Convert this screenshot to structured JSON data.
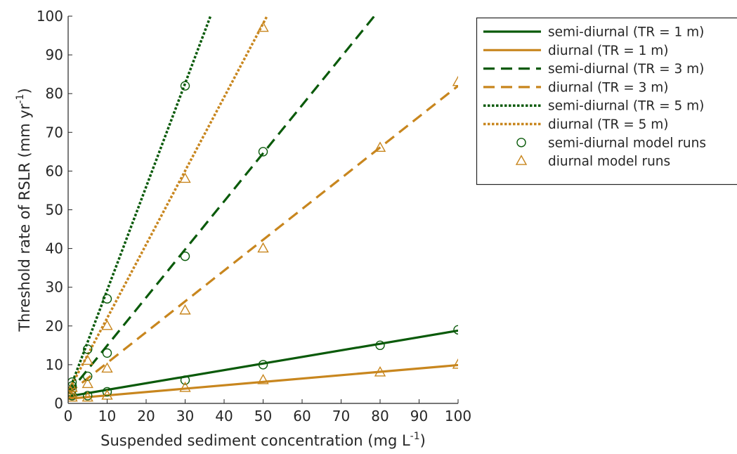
{
  "chart_data": {
    "type": "line",
    "xlabel": "Suspended sediment concentration (mg L",
    "xlabel_sup": "-1",
    "xlabel_tail": ")",
    "ylabel": "Threshold rate of RSLR (mm yr",
    "ylabel_sup": "-1",
    "ylabel_tail": ")",
    "xlim": [
      0,
      100
    ],
    "ylim": [
      0,
      100
    ],
    "xticks": [
      0,
      10,
      20,
      30,
      40,
      50,
      60,
      70,
      80,
      90,
      100
    ],
    "yticks": [
      0,
      10,
      20,
      30,
      40,
      50,
      60,
      70,
      80,
      90,
      100
    ],
    "grid": false,
    "legend_position": "outside-top-right",
    "colors": {
      "semi_diurnal": "#0a5a0a",
      "diurnal": "#c8861e"
    },
    "series": [
      {
        "name": "semi-diurnal (TR = 1 m)",
        "kind": "line",
        "color": "#0a5a0a",
        "dash": "solid",
        "x": [
          0,
          100
        ],
        "y": [
          1.8,
          18.8
        ]
      },
      {
        "name": "diurnal (TR = 1 m)",
        "kind": "line",
        "color": "#c8861e",
        "dash": "solid",
        "x": [
          0,
          100
        ],
        "y": [
          1.2,
          9.9
        ]
      },
      {
        "name": "semi-diurnal (TR = 3 m)",
        "kind": "line",
        "color": "#0a5a0a",
        "dash": "dashed",
        "x": [
          0,
          78.5
        ],
        "y": [
          2.5,
          100
        ]
      },
      {
        "name": "diurnal (TR = 3 m)",
        "kind": "line",
        "color": "#c8861e",
        "dash": "dashed",
        "x": [
          0,
          100
        ],
        "y": [
          2.5,
          82
        ]
      },
      {
        "name": "semi-diurnal (TR = 5 m)",
        "kind": "line",
        "color": "#0a5a0a",
        "dash": "dotted",
        "x": [
          0,
          36.5
        ],
        "y": [
          2.5,
          100
        ]
      },
      {
        "name": "diurnal (TR = 5 m)",
        "kind": "line",
        "color": "#c8861e",
        "dash": "dotted",
        "x": [
          0,
          51
        ],
        "y": [
          3,
          100
        ]
      },
      {
        "name": "semi-diurnal model runs",
        "kind": "marker",
        "marker": "circle",
        "color": "#0a5a0a",
        "x": [
          1,
          1,
          1,
          1,
          5,
          5,
          5,
          10,
          10,
          10,
          30,
          30,
          30,
          50,
          50,
          80,
          100
        ],
        "y": [
          2,
          3.5,
          4.5,
          5.5,
          2,
          7,
          14,
          3,
          13,
          27,
          6,
          38,
          82,
          10,
          65,
          15,
          19
        ]
      },
      {
        "name": "diurnal model runs",
        "kind": "marker",
        "marker": "triangle",
        "color": "#c8861e",
        "x": [
          1,
          1,
          1,
          5,
          5,
          5,
          10,
          10,
          10,
          30,
          30,
          30,
          50,
          50,
          50,
          80,
          80,
          100,
          100
        ],
        "y": [
          1.5,
          2.5,
          4,
          1.5,
          5,
          11,
          2,
          9,
          20,
          4,
          24,
          58,
          6,
          40,
          97,
          8,
          66,
          10,
          83
        ]
      }
    ]
  }
}
